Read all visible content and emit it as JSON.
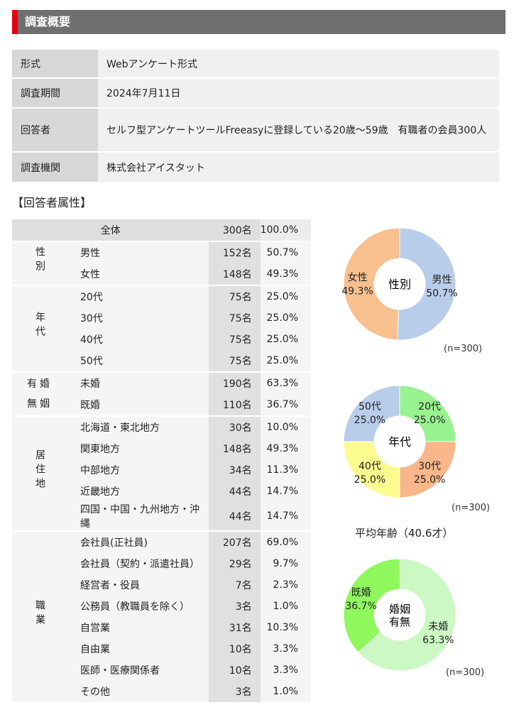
{
  "section": {
    "title": "調査概要",
    "accent_color": "#e60012",
    "header_color": "#6f6f6f"
  },
  "overview": [
    {
      "key": "形式",
      "value": "Webアンケート形式"
    },
    {
      "key": "調査期間",
      "value": "2024年7月11日"
    },
    {
      "key": "回答者",
      "value": "セルフ型アンケートツールFreeasyに登録している20歳～59歳　有職者の会員300人"
    },
    {
      "key": "調査機関",
      "value": "株式会社アイスタット"
    }
  ],
  "attributes": {
    "title": "【回答者属性】",
    "total": {
      "label": "全体",
      "count": "300名",
      "pct": "100.0%"
    },
    "groups": [
      {
        "name": "性別",
        "rows": [
          {
            "label": "男性",
            "count": "152名",
            "pct": "50.7%"
          },
          {
            "label": "女性",
            "count": "148名",
            "pct": "49.3%"
          }
        ]
      },
      {
        "name": "年代",
        "rows": [
          {
            "label": "20代",
            "count": "75名",
            "pct": "25.0%"
          },
          {
            "label": "30代",
            "count": "75名",
            "pct": "25.0%"
          },
          {
            "label": "40代",
            "count": "75名",
            "pct": "25.0%"
          },
          {
            "label": "50代",
            "count": "75名",
            "pct": "25.0%"
          }
        ]
      },
      {
        "name": "有婚無姻",
        "rows": [
          {
            "label": "未婚",
            "count": "190名",
            "pct": "63.3%"
          },
          {
            "label": "既婚",
            "count": "110名",
            "pct": "36.7%"
          }
        ]
      },
      {
        "name": "居住地",
        "rows": [
          {
            "label": "北海道・東北地方",
            "count": "30名",
            "pct": "10.0%"
          },
          {
            "label": "関東地方",
            "count": "148名",
            "pct": "49.3%"
          },
          {
            "label": "中部地方",
            "count": "34名",
            "pct": "11.3%"
          },
          {
            "label": "近畿地方",
            "count": "44名",
            "pct": "14.7%"
          },
          {
            "label": "四国・中国・九州地方・沖縄",
            "count": "44名",
            "pct": "14.7%"
          }
        ]
      },
      {
        "name": "職業",
        "rows": [
          {
            "label": "会社員(正社員)",
            "count": "207名",
            "pct": "69.0%"
          },
          {
            "label": "会社員（契約・派遣社員）",
            "count": "29名",
            "pct": "9.7%"
          },
          {
            "label": "経営者・役員",
            "count": "7名",
            "pct": "2.3%"
          },
          {
            "label": "公務員（教職員を除く）",
            "count": "3名",
            "pct": "1.0%"
          },
          {
            "label": "自営業",
            "count": "31名",
            "pct": "10.3%"
          },
          {
            "label": "自由業",
            "count": "10名",
            "pct": "3.3%"
          },
          {
            "label": "医師・医療関係者",
            "count": "10名",
            "pct": "3.3%"
          },
          {
            "label": "その他",
            "count": "3名",
            "pct": "1.0%"
          }
        ]
      }
    ]
  },
  "avg_age_text": "平均年齢（40.6才）",
  "chart_data": [
    {
      "type": "pie",
      "center_label": "性別",
      "n_label": "(n=300)",
      "slices": [
        {
          "label": "男性",
          "value": 50.7,
          "value_text": "50.7%",
          "color": "#b8cde9"
        },
        {
          "label": "女性",
          "value": 49.3,
          "value_text": "49.3%",
          "color": "#f8c08f"
        }
      ]
    },
    {
      "type": "pie",
      "center_label": "年代",
      "n_label": "(n=300)",
      "slices": [
        {
          "label": "20代",
          "value": 25.0,
          "value_text": "25.0%",
          "color": "#97f28f"
        },
        {
          "label": "30代",
          "value": 25.0,
          "value_text": "25.0%",
          "color": "#f9b68a"
        },
        {
          "label": "40代",
          "value": 25.0,
          "value_text": "25.0%",
          "color": "#fbfb8f"
        },
        {
          "label": "50代",
          "value": 25.0,
          "value_text": "25.0%",
          "color": "#b8cde9"
        }
      ]
    },
    {
      "type": "pie",
      "center_label": "婚姻有無",
      "n_label": "(n=300)",
      "slices": [
        {
          "label": "未婚",
          "value": 63.3,
          "value_text": "63.3%",
          "color": "#ccf8c4"
        },
        {
          "label": "既婚",
          "value": 36.7,
          "value_text": "36.7%",
          "color": "#8ef85c"
        }
      ]
    }
  ]
}
